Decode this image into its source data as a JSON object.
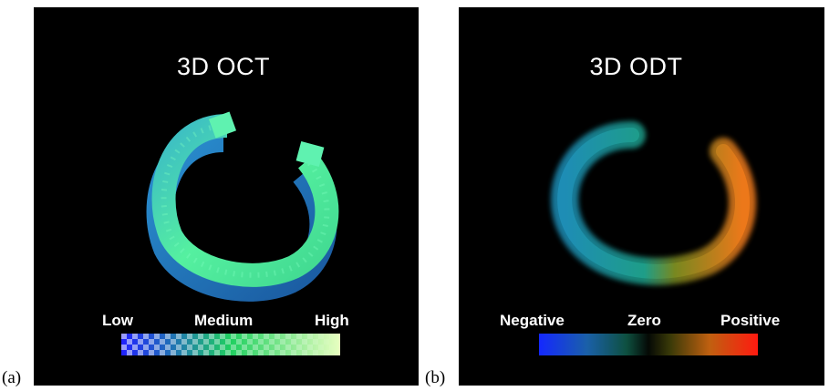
{
  "panels": [
    {
      "caption": "(a)",
      "title": "3D OCT",
      "scale_labels": [
        "Low",
        "Medium",
        "High"
      ],
      "colorbar": {
        "start": "#2020ff",
        "mid": "#20d060",
        "end": "#e8ffc0",
        "style": "checkered"
      }
    },
    {
      "caption": "(b)",
      "title": "3D ODT",
      "scale_labels": [
        "Negative",
        "Zero",
        "Positive"
      ],
      "colorbar": {
        "start": "#1428ff",
        "mid": "#0a1a10",
        "end": "#ff1a10",
        "style": "diverging"
      }
    }
  ],
  "colors": {
    "background": "#000000",
    "ring_oct_top": "#4ff0a0",
    "ring_oct_side": "#2080c8",
    "ring_odt_negative": "#1fa0b0",
    "ring_odt_positive": "#e87820"
  }
}
